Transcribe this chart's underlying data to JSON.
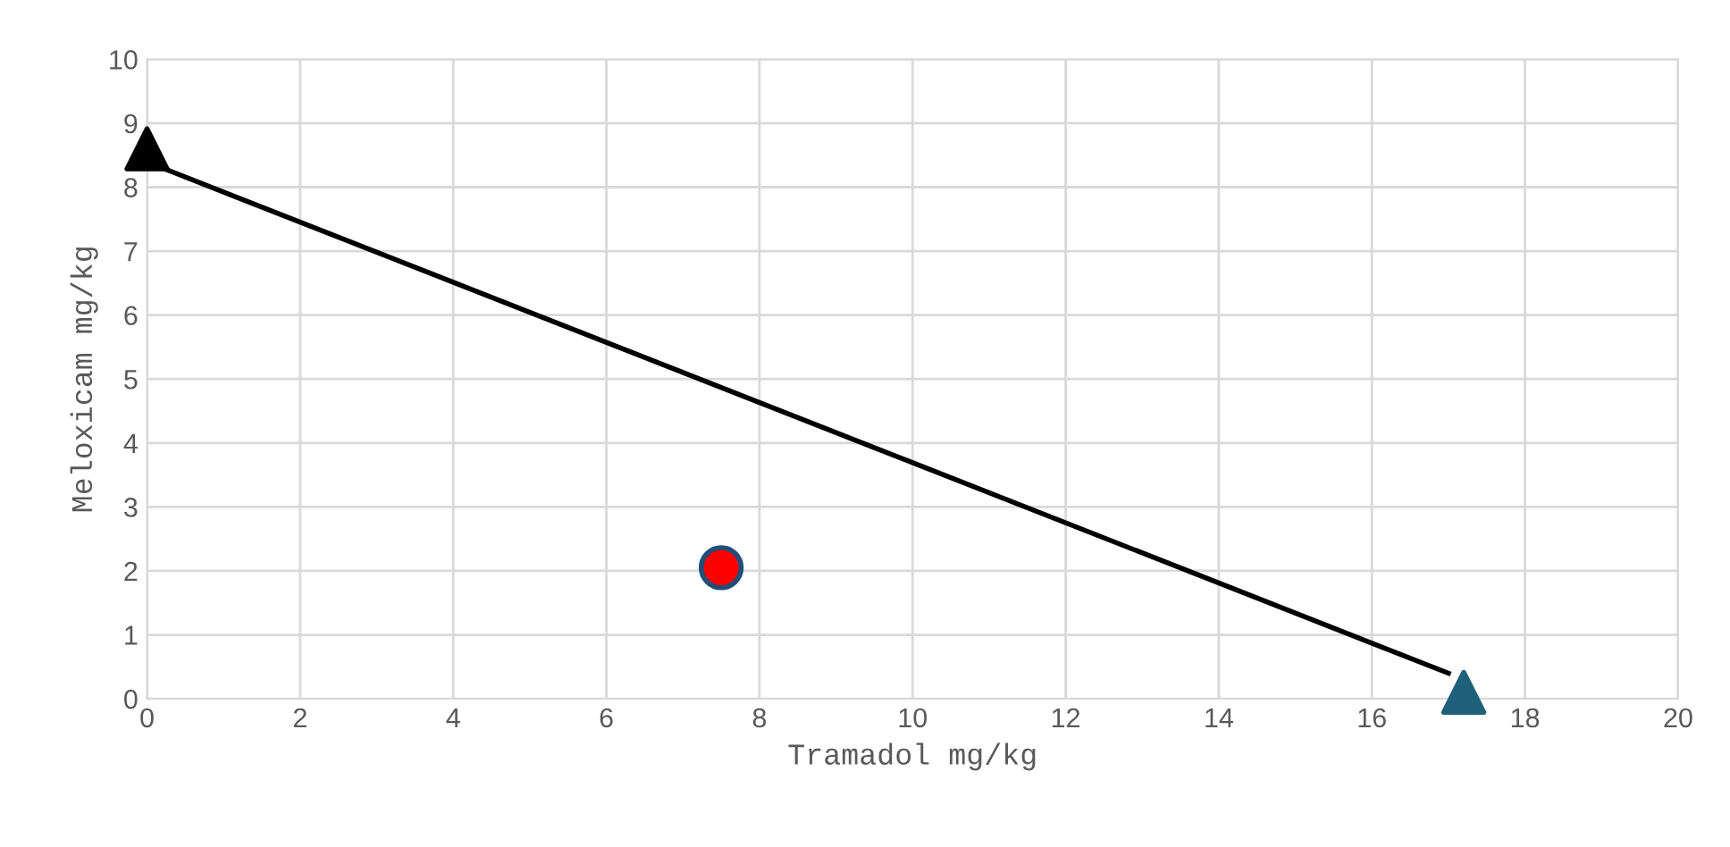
{
  "chart_data": {
    "type": "scatter",
    "xlabel": "Tramadol mg/kg",
    "ylabel": "Meloxicam mg/kg",
    "xlim": [
      0,
      20
    ],
    "ylim": [
      0,
      10
    ],
    "xticks": [
      0,
      2,
      4,
      6,
      8,
      10,
      12,
      14,
      16,
      18,
      20
    ],
    "yticks": [
      0,
      1,
      2,
      3,
      4,
      5,
      6,
      7,
      8,
      9,
      10
    ],
    "grid": true,
    "series": [
      {
        "type": "line",
        "color": "#000000",
        "x": [
          0.2,
          17.0
        ],
        "values": [
          8.3,
          0.4
        ],
        "marker": "none"
      },
      {
        "color": "#000000",
        "x": [
          0
        ],
        "values": [
          8.6
        ],
        "marker": "triangle"
      },
      {
        "color": "#1f5f7a",
        "x": [
          17.2
        ],
        "values": [
          0.1
        ],
        "marker": "triangle"
      },
      {
        "color": "#ff0000",
        "x": [
          7.5
        ],
        "values": [
          2.05
        ],
        "marker": "circle"
      }
    ]
  }
}
